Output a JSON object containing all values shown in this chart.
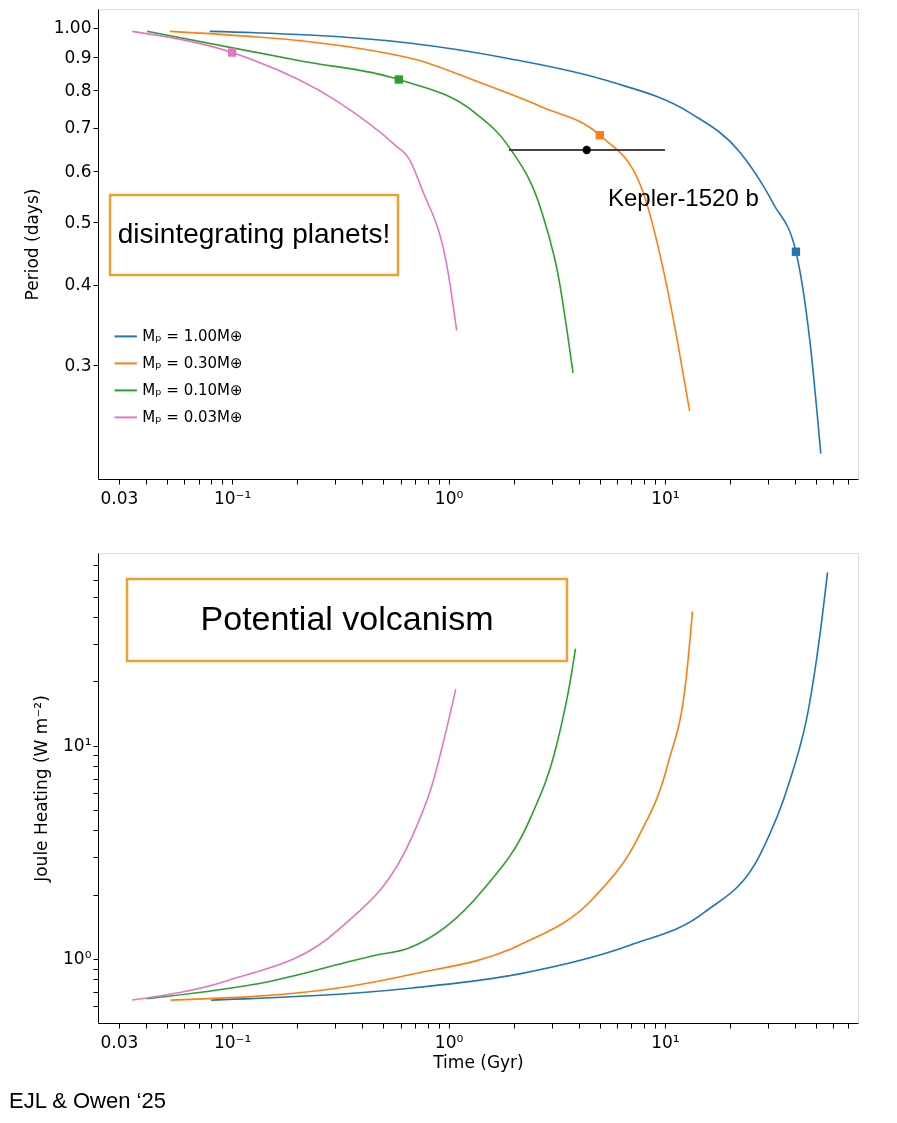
{
  "chart_data": [
    {
      "type": "line",
      "log": "xy",
      "xlim": [
        0.024,
        78
      ],
      "ylim": [
        0.2,
        1.07
      ],
      "ylabel": "Period (days)",
      "grid": false,
      "legend": "bottom left",
      "line_style": "solid",
      "xticks": [
        0.03,
        {
          "value": 0.04,
          "label": null
        },
        {
          "value": 0.05,
          "label": null
        },
        {
          "value": 0.06,
          "label": null
        },
        {
          "value": 0.07,
          "label": null
        },
        {
          "value": 0.08,
          "label": null
        },
        {
          "value": 0.09,
          "label": null
        },
        {
          "value": 0.1,
          "label": "10⁻¹"
        },
        {
          "value": 0.2,
          "label": null
        },
        {
          "value": 0.3,
          "label": null
        },
        {
          "value": 0.4,
          "label": null
        },
        {
          "value": 0.5,
          "label": null
        },
        {
          "value": 0.6,
          "label": null
        },
        {
          "value": 0.7,
          "label": null
        },
        {
          "value": 0.8,
          "label": null
        },
        {
          "value": 0.9,
          "label": null
        },
        {
          "value": 1,
          "label": "10⁰"
        },
        {
          "value": 2,
          "label": null
        },
        {
          "value": 3,
          "label": null
        },
        {
          "value": 4,
          "label": null
        },
        {
          "value": 5,
          "label": null
        },
        {
          "value": 6,
          "label": null
        },
        {
          "value": 7,
          "label": null
        },
        {
          "value": 8,
          "label": null
        },
        {
          "value": 9,
          "label": null
        },
        {
          "value": 10,
          "label": "10¹"
        },
        {
          "value": 20,
          "label": null
        },
        {
          "value": 30,
          "label": null
        },
        {
          "value": 40,
          "label": null
        },
        {
          "value": 50,
          "label": null
        },
        {
          "value": 60,
          "label": null
        },
        {
          "value": 70,
          "label": null
        }
      ],
      "yticks": [
        0.3,
        0.4,
        0.5,
        0.6,
        0.7,
        0.8,
        0.9,
        {
          "value": 1,
          "label": "1.00"
        }
      ],
      "series": [
        {
          "name": "Mₚ = 1.00M⊕",
          "color": "#1f77b4",
          "x": [
            0.0788,
            0.655,
            1.89,
            5.44,
            13.1,
            22.2,
            31.8,
            40.3,
            46.7,
            52.5
          ],
          "values": [
            0.988,
            0.948,
            0.897,
            0.828,
            0.738,
            0.642,
            0.533,
            0.45,
            0.328,
            0.219
          ]
        },
        {
          "name": "Mₚ = 0.30M⊕",
          "color": "#ff7f0e",
          "x": [
            0.0516,
            0.676,
            1.33,
            2.68,
            5.0,
            7.7,
            9.95,
            11.4,
            13.0
          ],
          "values": [
            0.988,
            0.897,
            0.828,
            0.755,
            0.682,
            0.571,
            0.414,
            0.328,
            0.255
          ]
        },
        {
          "name": "Mₚ = 0.10M⊕",
          "color": "#2ca02c",
          "x": [
            0.0405,
            0.211,
            0.589,
            1.33,
            1.89,
            2.68,
            3.21,
            3.76
          ],
          "values": [
            0.988,
            0.888,
            0.832,
            0.738,
            0.656,
            0.522,
            0.414,
            0.292
          ]
        },
        {
          "name": "Mₚ = 0.03M⊕",
          "color": "#e377c2",
          "x": [
            0.0345,
            0.1,
            0.3,
            0.57,
            0.655,
            0.75,
            1.0,
            1.09
          ],
          "values": [
            0.988,
            0.916,
            0.773,
            0.657,
            0.628,
            0.565,
            0.414,
            0.34
          ]
        },
        {
          "type": "scatter",
          "marker": "square",
          "color": "#1f77b4",
          "x": [
            40.3
          ],
          "values": [
            0.45
          ]
        },
        {
          "type": "scatter",
          "marker": "square",
          "color": "#ff7f0e",
          "x": [
            5.0
          ],
          "values": [
            0.682
          ]
        },
        {
          "type": "scatter",
          "marker": "square",
          "color": "#2ca02c",
          "x": [
            0.589
          ],
          "values": [
            0.832
          ]
        },
        {
          "type": "scatter",
          "marker": "square",
          "color": "#e377c2",
          "x": [
            0.1
          ],
          "values": [
            0.916
          ]
        },
        {
          "type": "scatter",
          "marker": "circle",
          "color": "#000000",
          "x": [
            4.35
          ],
          "values": [
            0.647
          ],
          "xerrors": [
            [
              1.9,
              10
            ]
          ]
        }
      ],
      "annotations": [
        "disintegrating planets!",
        "Kepler-1520 b"
      ]
    },
    {
      "type": "line",
      "log": "xy",
      "xlim": [
        0.024,
        78
      ],
      "ylim": [
        0.5,
        80
      ],
      "xlabel": "Time (Gyr)",
      "ylabel": "Joule Heating (W m⁻²)",
      "grid": false,
      "line_style": "solid",
      "xticks": [
        0.03,
        {
          "value": 0.04,
          "label": null
        },
        {
          "value": 0.05,
          "label": null
        },
        {
          "value": 0.06,
          "label": null
        },
        {
          "value": 0.07,
          "label": null
        },
        {
          "value": 0.08,
          "label": null
        },
        {
          "value": 0.09,
          "label": null
        },
        {
          "value": 0.1,
          "label": "10⁻¹"
        },
        {
          "value": 0.2,
          "label": null
        },
        {
          "value": 0.3,
          "label": null
        },
        {
          "value": 0.4,
          "label": null
        },
        {
          "value": 0.5,
          "label": null
        },
        {
          "value": 0.6,
          "label": null
        },
        {
          "value": 0.7,
          "label": null
        },
        {
          "value": 0.8,
          "label": null
        },
        {
          "value": 0.9,
          "label": null
        },
        {
          "value": 1,
          "label": "10⁰"
        },
        {
          "value": 2,
          "label": null
        },
        {
          "value": 3,
          "label": null
        },
        {
          "value": 4,
          "label": null
        },
        {
          "value": 5,
          "label": null
        },
        {
          "value": 6,
          "label": null
        },
        {
          "value": 7,
          "label": null
        },
        {
          "value": 8,
          "label": null
        },
        {
          "value": 9,
          "label": null
        },
        {
          "value": 10,
          "label": "10¹"
        },
        {
          "value": 20,
          "label": null
        },
        {
          "value": 30,
          "label": null
        },
        {
          "value": 40,
          "label": null
        },
        {
          "value": 50,
          "label": null
        },
        {
          "value": 60,
          "label": null
        },
        {
          "value": 70,
          "label": null
        }
      ],
      "yticks": [
        {
          "value": 0.6,
          "label": null
        },
        {
          "value": 0.7,
          "label": null
        },
        {
          "value": 0.8,
          "label": null
        },
        {
          "value": 0.9,
          "label": null
        },
        {
          "value": 1,
          "label": "10⁰"
        },
        {
          "value": 2,
          "label": null
        },
        {
          "value": 3,
          "label": null
        },
        {
          "value": 4,
          "label": null
        },
        {
          "value": 5,
          "label": null
        },
        {
          "value": 6,
          "label": null
        },
        {
          "value": 7,
          "label": null
        },
        {
          "value": 8,
          "label": null
        },
        {
          "value": 9,
          "label": null
        },
        {
          "value": 10,
          "label": "10¹"
        },
        {
          "value": 20,
          "label": null
        },
        {
          "value": 30,
          "label": null
        },
        {
          "value": 40,
          "label": null
        },
        {
          "value": 50,
          "label": null
        },
        {
          "value": 60,
          "label": null
        },
        {
          "value": 70,
          "label": null
        }
      ],
      "series": [
        {
          "color": "#1f77b4",
          "x": [
            0.08,
            0.68,
            2.13,
            6.93,
            15.2,
            27.6,
            37.6,
            46,
            51.8,
            56.4
          ],
          "values": [
            0.64,
            0.73,
            0.85,
            1.16,
            1.65,
            3.1,
            6.76,
            14.7,
            32,
            64.9
          ]
        },
        {
          "color": "#ff7f0e",
          "x": [
            0.052,
            0.31,
            0.653,
            2.13,
            4.68,
            7.55,
            10.3,
            12.6,
            13.4
          ],
          "values": [
            0.64,
            0.73,
            0.84,
            1.16,
            1.93,
            3.74,
            8.15,
            21.7,
            42.5
          ]
        },
        {
          "color": "#2ca02c",
          "x": [
            0.0403,
            0.141,
            0.46,
            0.653,
            1.44,
            2.39,
            3.15,
            3.7,
            3.86
          ],
          "values": [
            0.65,
            0.775,
            1.04,
            1.12,
            2.1,
            4.57,
            9.96,
            21.7,
            28.5
          ]
        },
        {
          "color": "#e377c2",
          "x": [
            0.0345,
            0.095,
            0.31,
            0.68,
            0.826,
            1.08
          ],
          "values": [
            0.641,
            0.79,
            1.37,
            3.76,
            6.2,
            18.4
          ]
        }
      ],
      "annotations": [
        "Potential volcanism",
        "EJL & Owen ‘25"
      ]
    }
  ]
}
